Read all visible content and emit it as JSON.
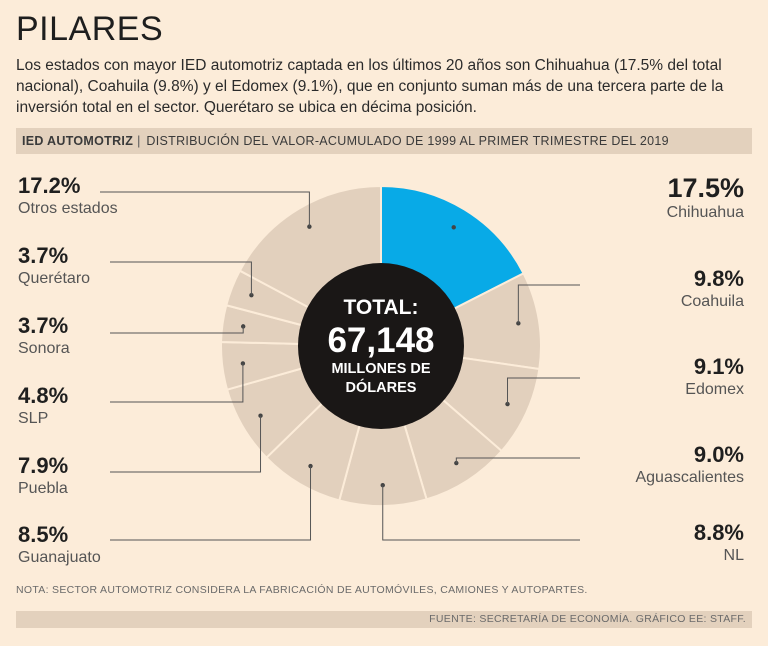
{
  "title": "PILARES",
  "intro": "Los estados con mayor IED automotriz captada en los últimos 20 años son Chihuahua (17.5% del total nacional), Coahuila (9.8%) y el Edomex (9.1%), que en conjunto suman más de una tercera parte de la inversión total en el sector. Querétaro se ubica en décima posición.",
  "subtitle": {
    "tag": "IED AUTOMOTRIZ",
    "separator": "|",
    "description": "DISTRIBUCIÓN DEL VALOR-ACUMULADO DE 1999 AL PRIMER TRIMESTRE DEL 2019"
  },
  "center": {
    "line1": "TOTAL:",
    "value": "67,148",
    "line3": "MILLONES DE",
    "line4": "DÓLARES"
  },
  "labels": {
    "chihuahua": {
      "pct": "17.5%",
      "name": "Chihuahua"
    },
    "coahuila": {
      "pct": "9.8%",
      "name": "Coahuila"
    },
    "edomex": {
      "pct": "9.1%",
      "name": "Edomex"
    },
    "aguascalientes": {
      "pct": "9.0%",
      "name": "Aguascalientes"
    },
    "nl": {
      "pct": "8.8%",
      "name": "NL"
    },
    "guanajuato": {
      "pct": "8.5%",
      "name": "Guanajuato"
    },
    "puebla": {
      "pct": "7.9%",
      "name": "Puebla"
    },
    "slp": {
      "pct": "4.8%",
      "name": "SLP"
    },
    "sonora": {
      "pct": "3.7%",
      "name": "Sonora"
    },
    "queretaro": {
      "pct": "3.7%",
      "name": "Querétaro"
    },
    "otros": {
      "pct": "17.2%",
      "name": "Otros estados"
    }
  },
  "note": "NOTA: SECTOR AUTOMOTRIZ CONSIDERA LA FABRICACIÓN DE AUTOMÓVILES, CAMIONES Y AUTOPARTES.",
  "source": "FUENTE: SECRETARÍA DE ECONOMÍA. GRÁFICO EE: STAFF.",
  "colors": {
    "background": "#fcecd9",
    "slice": "#e2d0bd",
    "highlight": "#08aae7",
    "center": "#1a1716",
    "stroke": "#fcecd9"
  },
  "chart_data": {
    "type": "pie",
    "title": "IED AUTOMOTRIZ",
    "subtitle": "DISTRIBUCIÓN DEL VALOR-ACUMULADO DE 1999 AL PRIMER TRIMESTRE DEL 2019",
    "unit": "%",
    "total_label": "67,148 MILLONES DE DÓLARES",
    "categories": [
      "Chihuahua",
      "Coahuila",
      "Edomex",
      "Aguascalientes",
      "NL",
      "Guanajuato",
      "Puebla",
      "SLP",
      "Sonora",
      "Querétaro",
      "Otros estados"
    ],
    "values": [
      17.5,
      9.8,
      9.1,
      9.0,
      8.8,
      8.5,
      7.9,
      4.8,
      3.7,
      3.7,
      17.2
    ],
    "highlight": "Chihuahua"
  }
}
